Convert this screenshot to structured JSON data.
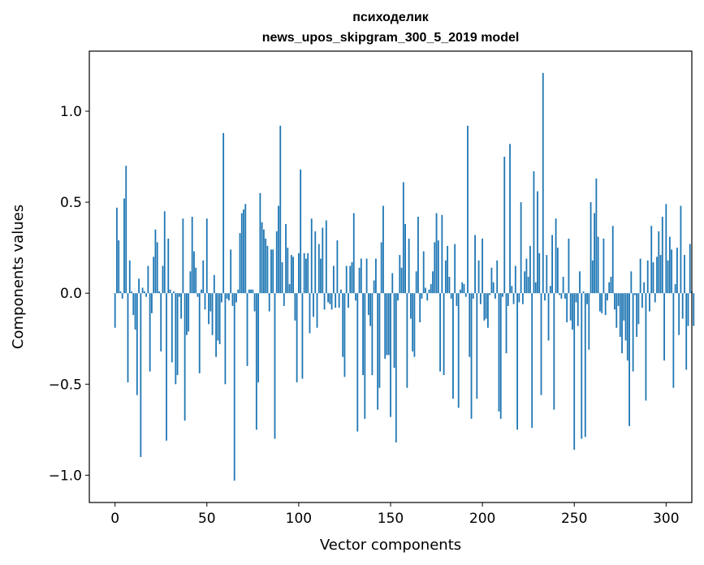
{
  "chart_data": {
    "type": "bar",
    "title_lines": [
      "психоделик",
      "news_upos_skipgram_300_5_2019 model"
    ],
    "xlabel": "Vector components",
    "ylabel": "Components values",
    "xlim": [
      -14,
      314
    ],
    "ylim": [
      -1.15,
      1.33
    ],
    "xticks": [
      0,
      50,
      100,
      150,
      200,
      250,
      300
    ],
    "yticks": [
      -1.0,
      -0.5,
      0.0,
      0.5,
      1.0
    ],
    "ytick_labels": [
      "−1.0",
      "−0.5",
      "0.0",
      "0.5",
      "1.0"
    ],
    "bar_color": "#1f77b4",
    "grid": false,
    "values": [
      -0.19,
      0.47,
      0.29,
      0.01,
      -0.03,
      0.52,
      0.7,
      -0.49,
      0.18,
      0.01,
      -0.12,
      -0.2,
      -0.56,
      0.08,
      -0.9,
      0.03,
      0.01,
      -0.02,
      0.15,
      -0.43,
      -0.11,
      0.2,
      0.35,
      0.28,
      0.01,
      -0.32,
      0.15,
      0.45,
      -0.81,
      0.3,
      0.02,
      -0.38,
      0.01,
      -0.5,
      -0.45,
      -0.02,
      -0.14,
      0.41,
      -0.7,
      -0.23,
      -0.21,
      0.12,
      0.42,
      0.23,
      0.14,
      -0.02,
      -0.44,
      0.02,
      0.18,
      -0.09,
      0.41,
      -0.17,
      -0.1,
      -0.23,
      0.1,
      -0.35,
      -0.26,
      -0.28,
      -0.05,
      0.88,
      -0.5,
      -0.03,
      -0.04,
      0.24,
      -0.07,
      -1.03,
      -0.05,
      0.02,
      0.33,
      0.44,
      0.46,
      0.49,
      -0.4,
      0.02,
      0.02,
      0.02,
      -0.1,
      -0.75,
      -0.49,
      0.55,
      0.39,
      0.35,
      0.3,
      0.26,
      -0.1,
      0.24,
      0.24,
      -0.8,
      0.34,
      0.48,
      0.92,
      0.17,
      -0.07,
      0.38,
      0.25,
      0.05,
      0.21,
      0.2,
      -0.15,
      -0.49,
      0.22,
      0.68,
      -0.47,
      0.22,
      0.19,
      0.22,
      -0.22,
      0.41,
      -0.13,
      0.34,
      -0.19,
      0.27,
      0.19,
      0.36,
      -0.09,
      0.4,
      -0.05,
      -0.06,
      -0.09,
      0.15,
      -0.08,
      0.29,
      -0.08,
      0.02,
      -0.35,
      -0.46,
      0.15,
      -0.08,
      0.15,
      0.17,
      0.44,
      -0.04,
      -0.76,
      0.14,
      0.19,
      -0.45,
      -0.69,
      0.19,
      -0.12,
      -0.18,
      -0.45,
      0.07,
      0.19,
      -0.64,
      -0.52,
      0.28,
      0.48,
      -0.36,
      -0.34,
      -0.34,
      -0.68,
      0.11,
      -0.41,
      -0.82,
      -0.04,
      0.21,
      0.14,
      0.61,
      0.38,
      -0.52,
      0.3,
      -0.14,
      -0.32,
      -0.35,
      0.12,
      0.42,
      -0.16,
      -0.03,
      0.23,
      0.03,
      -0.04,
      0.02,
      0.05,
      0.12,
      0.28,
      0.44,
      0.29,
      -0.43,
      0.43,
      -0.45,
      0.18,
      0.26,
      0.09,
      -0.03,
      -0.58,
      0.27,
      -0.07,
      -0.63,
      0.02,
      0.06,
      0.05,
      -0.02,
      0.92,
      -0.35,
      -0.69,
      -0.03,
      0.32,
      -0.58,
      0.18,
      -0.06,
      0.3,
      -0.15,
      -0.14,
      -0.19,
      -0.01,
      0.14,
      0.06,
      -0.03,
      0.18,
      -0.65,
      -0.69,
      -0.02,
      0.75,
      -0.33,
      -0.07,
      0.82,
      0.04,
      -0.06,
      0.15,
      -0.75,
      -0.05,
      0.5,
      -0.06,
      0.12,
      0.19,
      0.09,
      0.26,
      -0.74,
      0.67,
      0.06,
      0.56,
      0.22,
      -0.56,
      1.21,
      -0.04,
      0.21,
      -0.26,
      0.04,
      0.32,
      -0.64,
      0.41,
      0.25,
      -0.01,
      -0.03,
      0.09,
      -0.03,
      -0.16,
      0.3,
      -0.15,
      -0.2,
      -0.86,
      -0.05,
      -0.18,
      0.12,
      -0.8,
      0.01,
      -0.79,
      -0.06,
      -0.31,
      0.5,
      0.18,
      0.44,
      0.63,
      0.31,
      -0.1,
      -0.11,
      0.3,
      -0.12,
      -0.04,
      0.06,
      0.09,
      0.37,
      -0.09,
      -0.19,
      -0.07,
      -0.24,
      -0.33,
      -0.15,
      -0.26,
      -0.37,
      -0.73,
      0.12,
      -0.43,
      -0.01,
      -0.24,
      -0.17,
      0.19,
      -0.08,
      0.06,
      -0.59,
      0.18,
      -0.1,
      0.37,
      0.17,
      -0.05,
      0.2,
      0.34,
      0.21,
      0.42,
      -0.37,
      0.49,
      0.18,
      0.31,
      0.24,
      -0.52,
      0.05,
      0.25,
      -0.23,
      0.48,
      -0.14,
      0.21,
      -0.42,
      -0.18,
      0.27,
      0.01,
      -0.18
    ]
  }
}
